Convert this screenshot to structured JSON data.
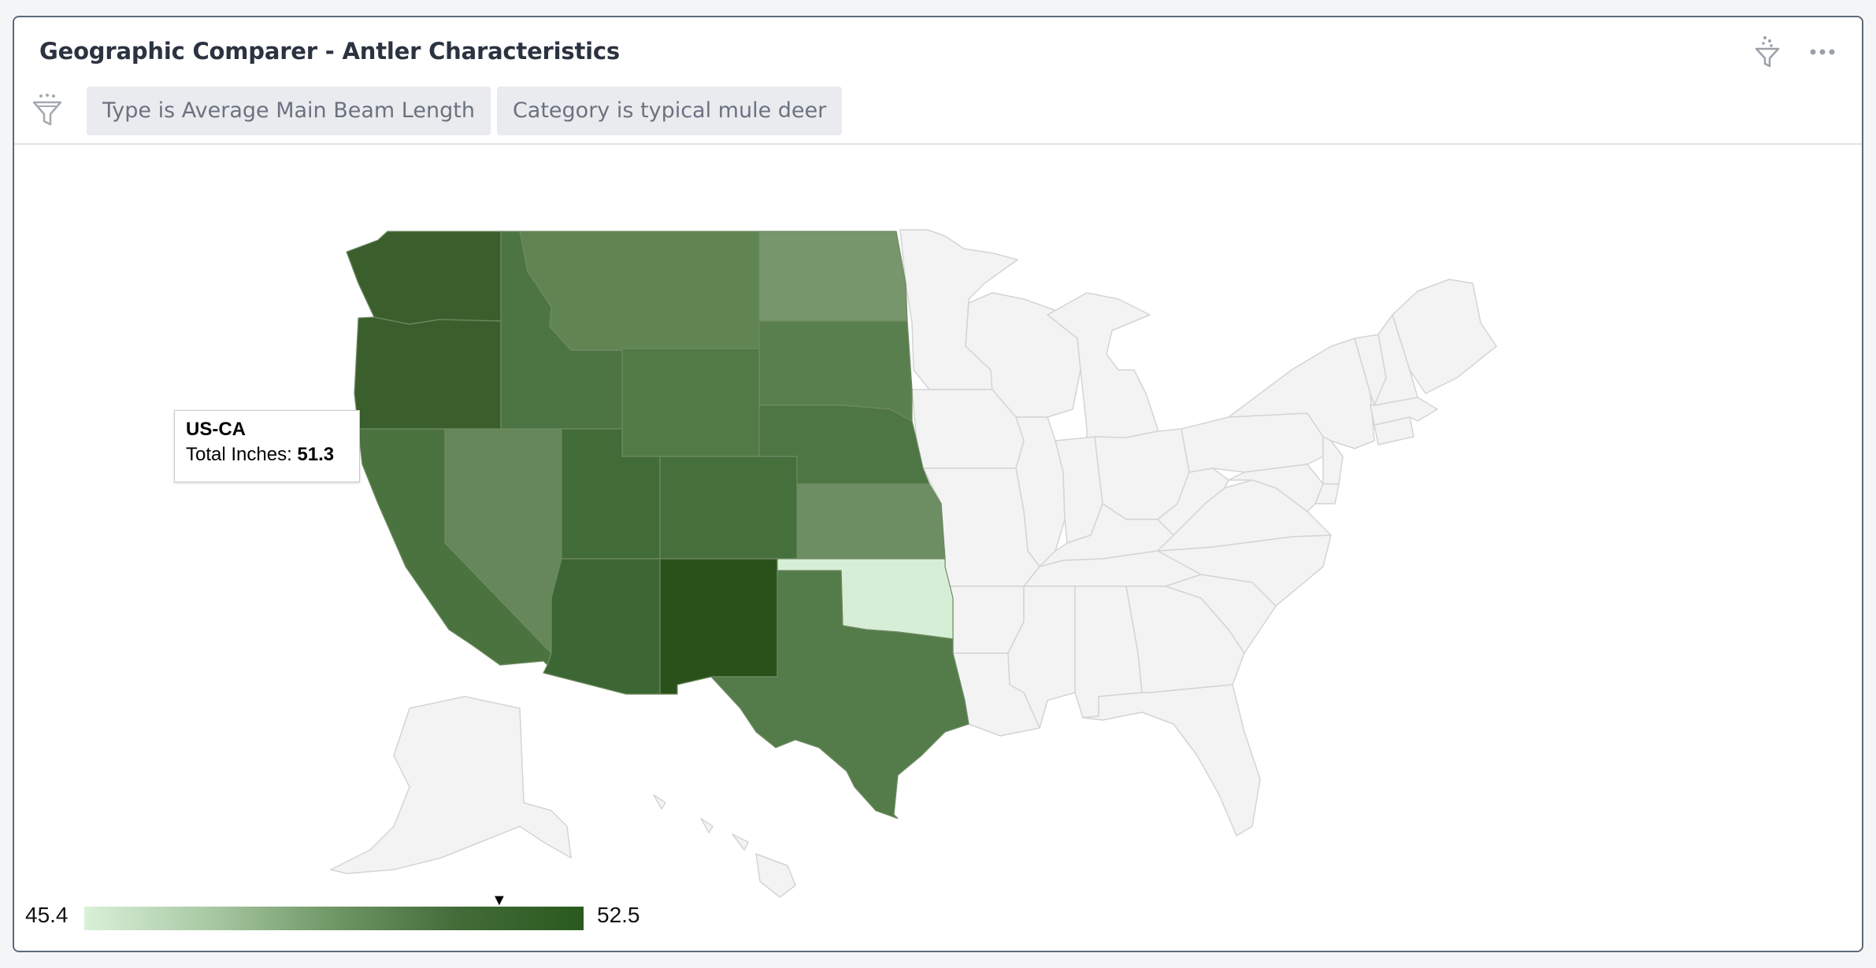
{
  "title": "Geographic Comparer - Antler Characteristics",
  "header_icons": [
    "filter-sparkle-icon",
    "more-options-icon"
  ],
  "filters": [
    {
      "label": "Type is Average Main Beam Length"
    },
    {
      "label": "Category is typical mule deer"
    }
  ],
  "tooltip": {
    "id": "US-CA",
    "metric_label": "Total Inches: ",
    "value": "51.3"
  },
  "legend": {
    "min": "45.4",
    "max": "52.5",
    "marker_value": 51.3,
    "color_min": "#d9f0d9",
    "color_max": "#2a5a1e",
    "no_data_color": "#f3f3f3"
  },
  "map_colors": {
    "US-WA": "#3a5f2c",
    "US-OR": "#3a5f2c",
    "US-CA": "#4a7340",
    "US-ID": "#4d7443",
    "US-NV": "#66875a",
    "US-MT": "#608553",
    "US-WY": "#527a47",
    "US-UT": "#416b37",
    "US-AZ": "#3c6633",
    "US-CO": "#456f3b",
    "US-NM": "#2a5119",
    "US-ND": "#78966b",
    "US-SD": "#5a7f4f",
    "US-NE": "#4e7544",
    "US-KS": "#6d8d62",
    "US-OK": "#d7eed6",
    "US-TX": "#547c4a"
  }
}
